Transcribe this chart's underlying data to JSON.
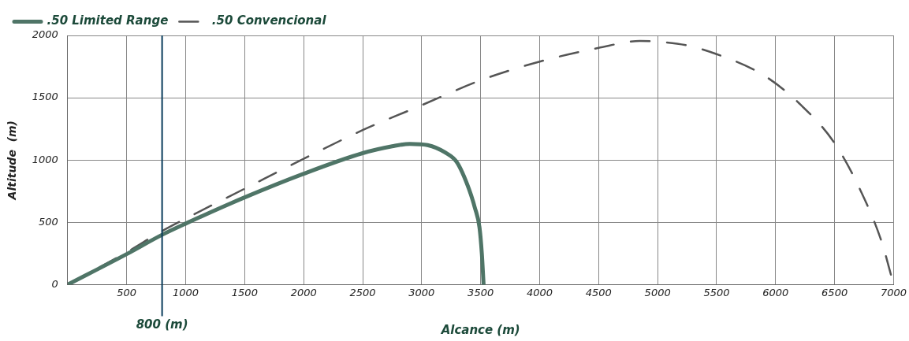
{
  "chart_data": {
    "type": "line",
    "xlabel": "Alcance (m)",
    "ylabel": "Altitude  (m)",
    "xlim": [
      0,
      7000
    ],
    "ylim": [
      0,
      2000
    ],
    "xticks": [
      {
        "value": 0,
        "label": null
      },
      500,
      1000,
      1500,
      2000,
      2500,
      3000,
      3500,
      4000,
      4500,
      5000,
      5500,
      6000,
      6500,
      7000
    ],
    "yticks": [
      0,
      500,
      1000,
      1500,
      2000
    ],
    "grid": true,
    "legend": "top left",
    "marker": "none",
    "ref_lines": [
      {
        "axis": "x",
        "value": 800,
        "label": "800 (m)",
        "color": "#0b3d5c"
      }
    ],
    "series": [
      {
        "name": ".50 Limited Range",
        "color": "#4f7567",
        "line_style": "solid",
        "x": [
          0,
          500,
          800,
          1000,
          1500,
          2000,
          2500,
          2750,
          2900,
          3050,
          3200,
          3300,
          3400,
          3450,
          3490,
          3510,
          3525
        ],
        "values": [
          0,
          245,
          400,
          490,
          700,
          890,
          1055,
          1110,
          1130,
          1120,
          1060,
          980,
          770,
          620,
          460,
          250,
          0
        ]
      },
      {
        "name": ".50 Convencional",
        "color": "#555555",
        "line_style": "dashed",
        "x": [
          0,
          500,
          800,
          1000,
          1500,
          2000,
          2500,
          3000,
          3500,
          4000,
          4500,
          4850,
          5000,
          5250,
          5500,
          5900,
          6200,
          6500,
          6720,
          6900,
          7000
        ],
        "values": [
          0,
          260,
          430,
          530,
          770,
          1010,
          1240,
          1440,
          1640,
          1790,
          1900,
          1955,
          1950,
          1920,
          1850,
          1680,
          1455,
          1135,
          755,
          340,
          0
        ]
      }
    ]
  }
}
